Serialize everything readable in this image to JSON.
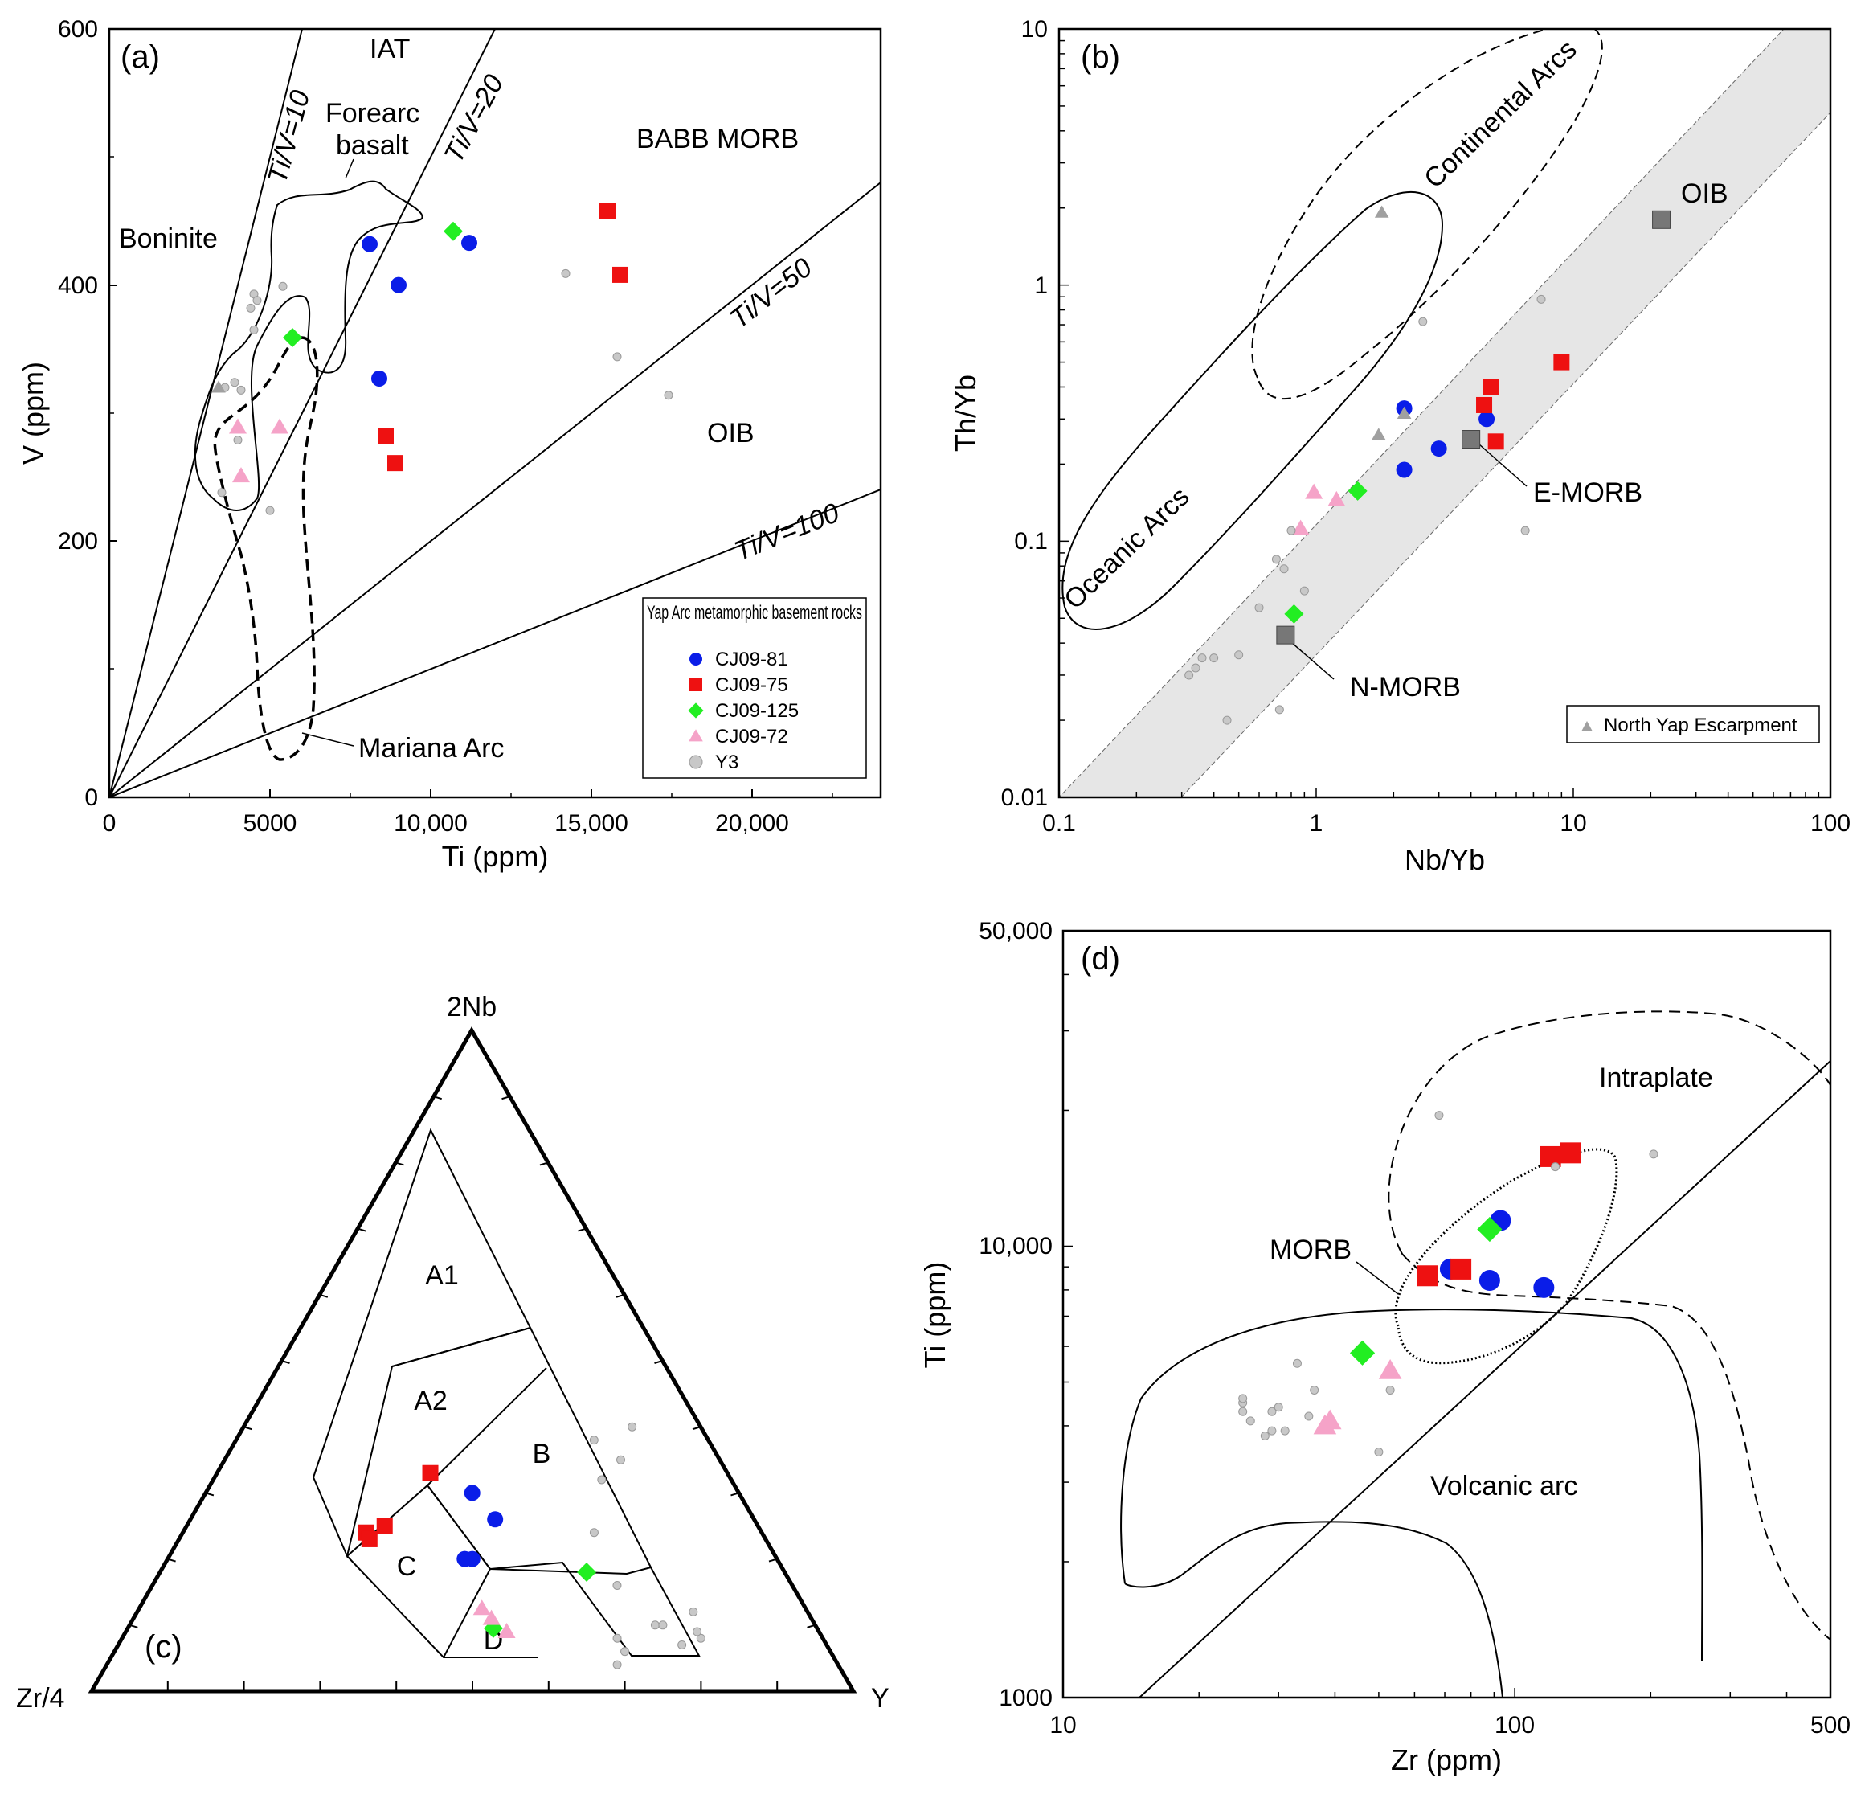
{
  "colors": {
    "CJ09-81": "#0a1de8",
    "CJ09-75": "#ee1111",
    "CJ09-125": "#22ee22",
    "CJ09-72": "#f5a3c8",
    "Y3": "#c8c8c8",
    "NYE": "#a0a0a0",
    "ref": "#777777",
    "band": "#e6e6e6"
  },
  "chart_data": [
    {
      "id": "a",
      "type": "scatter",
      "panel_label": "(a)",
      "xlabel": "Ti (ppm)",
      "ylabel": "V (ppm)",
      "xlim": [
        0,
        24000
      ],
      "ylim": [
        0,
        600
      ],
      "x_ticks": [
        "0",
        "5000",
        "10,000",
        "15,000",
        "20,000"
      ],
      "x_tick_values": [
        0,
        5000,
        10000,
        15000,
        20000
      ],
      "y_ticks": [
        "0",
        "200",
        "400",
        "600"
      ],
      "y_tick_values": [
        0,
        200,
        400,
        600
      ],
      "ratio_lines": [
        {
          "label": "Ti/V=10",
          "ratio": 10
        },
        {
          "label": "Ti/V=20",
          "ratio": 20
        },
        {
          "label": "Ti/V=50",
          "ratio": 50
        },
        {
          "label": "Ti/V=100",
          "ratio": 100
        }
      ],
      "field_labels": [
        "IAT",
        "Forearc basalt",
        "BABB MORB",
        "Boninite",
        "OIB",
        "Mariana Arc"
      ],
      "legend": {
        "title": "Yap Arc metamorphic basement rocks",
        "entries": [
          "CJ09-81",
          "CJ09-75",
          "CJ09-125",
          "CJ09-72",
          "Y3"
        ]
      },
      "series": [
        {
          "name": "CJ09-81",
          "marker": "circle",
          "x": [
            8100,
            9000,
            11200,
            8400
          ],
          "y": [
            432,
            400,
            433,
            327
          ]
        },
        {
          "name": "CJ09-75",
          "marker": "square",
          "x": [
            15500,
            15900,
            8600,
            8900
          ],
          "y": [
            458,
            408,
            282,
            261
          ]
        },
        {
          "name": "CJ09-125",
          "marker": "diamond",
          "x": [
            10700,
            5700
          ],
          "y": [
            442,
            359
          ]
        },
        {
          "name": "CJ09-72",
          "marker": "triangle",
          "x": [
            4000,
            5300,
            4100
          ],
          "y": [
            289,
            289,
            251
          ]
        },
        {
          "name": "Y3",
          "marker": "smallcircle",
          "x": [
            4500,
            4600,
            4400,
            4500,
            5400,
            3900,
            4100,
            3500,
            4000,
            3600,
            5000,
            14200,
            15800,
            17400
          ],
          "y": [
            393,
            388,
            382,
            365,
            399,
            324,
            318,
            238,
            279,
            320,
            224,
            409,
            344,
            314
          ]
        },
        {
          "name": "North Yap Escarpment",
          "marker": "triangle-small",
          "x": [
            3400
          ],
          "y": [
            320
          ]
        }
      ]
    },
    {
      "id": "b",
      "type": "scatter",
      "panel_label": "(b)",
      "xlabel": "Nb/Yb",
      "ylabel": "Th/Yb",
      "xscale": "log",
      "yscale": "log",
      "xlim": [
        0.1,
        100
      ],
      "ylim": [
        0.01,
        10
      ],
      "x_ticks": [
        "0.1",
        "1",
        "10",
        "100"
      ],
      "x_tick_values": [
        0.1,
        1,
        10,
        100
      ],
      "y_ticks": [
        "0.01",
        "0.1",
        "1",
        "10"
      ],
      "y_tick_values": [
        0.01,
        0.1,
        1,
        10
      ],
      "field_labels": [
        "Oceanic Arcs",
        "Continental Arcs",
        "OIB",
        "E-MORB",
        "N-MORB"
      ],
      "legend": {
        "entries": [
          "North Yap Escarpment"
        ]
      },
      "reference_points": [
        {
          "name": "OIB",
          "x": 22,
          "y": 1.8
        },
        {
          "name": "E-MORB",
          "x": 4.0,
          "y": 0.25
        },
        {
          "name": "N-MORB",
          "x": 0.76,
          "y": 0.043
        }
      ],
      "series": [
        {
          "name": "CJ09-81",
          "marker": "circle",
          "x": [
            2.2,
            2.2,
            3.0,
            4.6
          ],
          "y": [
            0.33,
            0.19,
            0.23,
            0.3
          ]
        },
        {
          "name": "CJ09-75",
          "marker": "square",
          "x": [
            4.5,
            4.8,
            5.0,
            9.0
          ],
          "y": [
            0.34,
            0.4,
            0.245,
            0.5
          ]
        },
        {
          "name": "CJ09-125",
          "marker": "diamond",
          "x": [
            1.45,
            0.82
          ],
          "y": [
            0.157,
            0.052
          ]
        },
        {
          "name": "CJ09-72",
          "marker": "triangle",
          "x": [
            0.98,
            0.87,
            1.2
          ],
          "y": [
            0.155,
            0.112,
            0.145
          ]
        },
        {
          "name": "Y3",
          "marker": "smallcircle",
          "x": [
            0.32,
            0.34,
            0.36,
            0.4,
            0.45,
            0.5,
            0.6,
            0.7,
            0.72,
            0.75,
            0.8,
            0.9,
            2.6,
            6.5,
            7.5
          ],
          "y": [
            0.03,
            0.032,
            0.035,
            0.035,
            0.02,
            0.036,
            0.055,
            0.085,
            0.022,
            0.078,
            0.11,
            0.064,
            0.72,
            0.11,
            0.88
          ]
        },
        {
          "name": "North Yap Escarpment",
          "marker": "triangle-small",
          "x": [
            1.8,
            1.75,
            2.2
          ],
          "y": [
            1.92,
            0.26,
            0.315
          ]
        }
      ]
    },
    {
      "id": "c",
      "type": "scatter",
      "panel_label": "(c)",
      "ternary": true,
      "apex_labels": [
        "2Nb",
        "Zr/4",
        "Y"
      ],
      "field_labels": [
        "A1",
        "A2",
        "B",
        "C",
        "D"
      ],
      "series": [
        {
          "name": "CJ09-81",
          "marker": "circle",
          "a": [
            0.3,
            0.26,
            0.2,
            0.2
          ],
          "c": [
            0.35,
            0.4,
            0.39,
            0.4
          ]
        },
        {
          "name": "CJ09-75",
          "marker": "square",
          "a": [
            0.33,
            0.24,
            0.23,
            0.25
          ],
          "c": [
            0.28,
            0.24,
            0.25,
            0.26
          ]
        },
        {
          "name": "CJ09-125",
          "marker": "diamond",
          "a": [
            0.18,
            0.095
          ],
          "c": [
            0.56,
            0.48
          ]
        },
        {
          "name": "CJ09-72",
          "marker": "triangle",
          "a": [
            0.125,
            0.11,
            0.09
          ],
          "c": [
            0.45,
            0.47,
            0.5
          ]
        },
        {
          "name": "Y3",
          "marker": "smallcircle",
          "a": [
            0.38,
            0.4,
            0.35,
            0.32,
            0.24,
            0.16,
            0.08,
            0.06,
            0.04,
            0.1,
            0.1,
            0.12,
            0.07,
            0.08,
            0.09
          ],
          "c": [
            0.47,
            0.51,
            0.52,
            0.51,
            0.54,
            0.61,
            0.65,
            0.67,
            0.67,
            0.69,
            0.7,
            0.73,
            0.74,
            0.76,
            0.75
          ]
        }
      ]
    },
    {
      "id": "d",
      "type": "scatter",
      "panel_label": "(d)",
      "xlabel": "Zr (ppm)",
      "ylabel": "Ti (ppm)",
      "xscale": "log",
      "yscale": "log",
      "xlim": [
        10,
        500
      ],
      "ylim": [
        1000,
        50000
      ],
      "x_ticks": [
        "10",
        "100",
        "500"
      ],
      "x_tick_values": [
        10,
        100,
        500
      ],
      "y_ticks": [
        "1000",
        "10,000",
        "50,000"
      ],
      "y_tick_values": [
        1000,
        10000,
        50000
      ],
      "field_labels": [
        "Intraplate",
        "MORB",
        "Volcanic arc"
      ],
      "series": [
        {
          "name": "CJ09-81",
          "marker": "circle",
          "x": [
            72,
            88,
            93,
            116
          ],
          "y": [
            8900,
            8400,
            11400,
            8100
          ]
        },
        {
          "name": "CJ09-75",
          "marker": "square",
          "x": [
            64,
            76,
            120,
            133
          ],
          "y": [
            8600,
            8900,
            15800,
            16100
          ]
        },
        {
          "name": "CJ09-125",
          "marker": "diamond",
          "x": [
            88,
            46
          ],
          "y": [
            10900,
            5800
          ]
        },
        {
          "name": "CJ09-72",
          "marker": "triangle",
          "x": [
            38,
            39,
            53
          ],
          "y": [
            4000,
            4100,
            5300
          ]
        },
        {
          "name": "Y3",
          "marker": "smallcircle",
          "x": [
            25,
            25,
            28,
            29,
            29,
            30,
            31,
            33,
            35,
            36,
            50,
            53,
            68,
            123,
            203,
            25,
            26
          ],
          "y": [
            4500,
            4300,
            3800,
            4300,
            3900,
            4400,
            3900,
            5500,
            4200,
            4800,
            3500,
            4800,
            19500,
            15000,
            16000,
            4600,
            4100
          ]
        }
      ]
    }
  ]
}
